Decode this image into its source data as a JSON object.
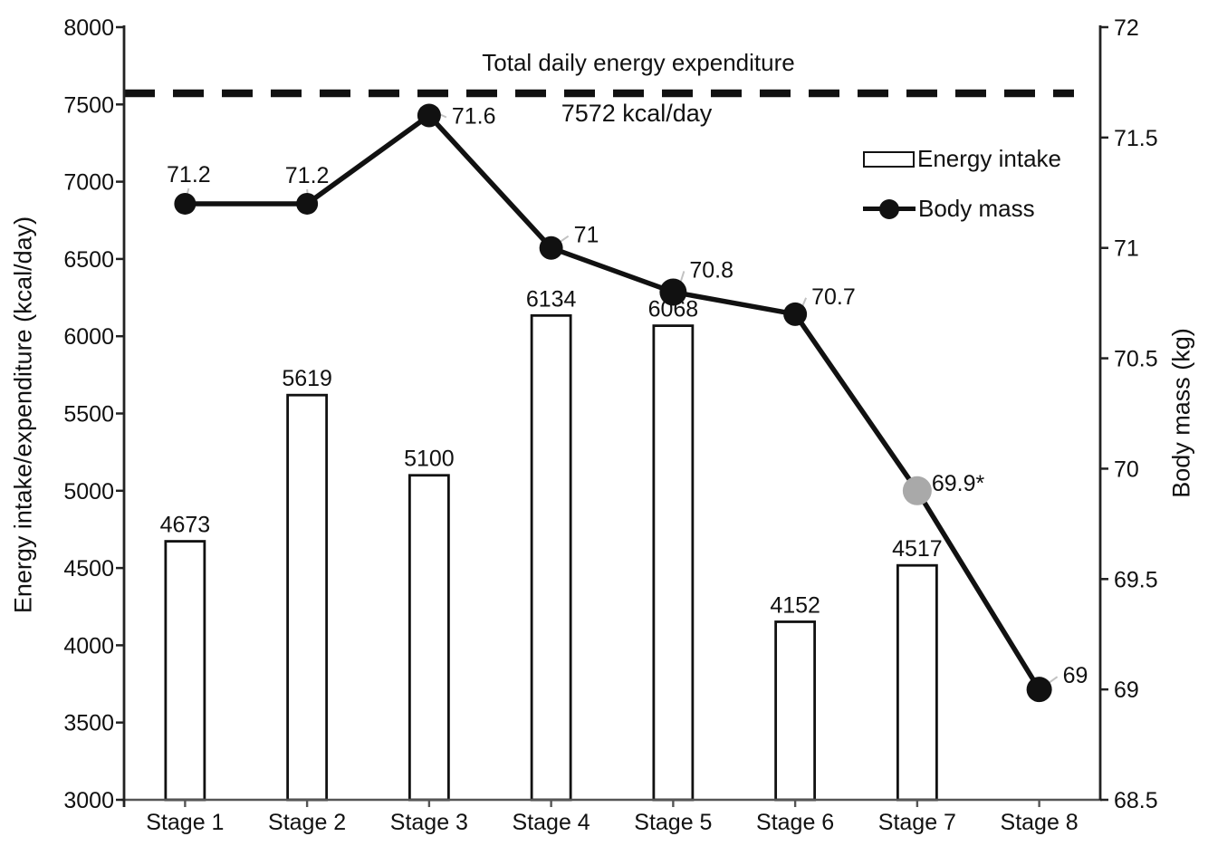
{
  "chart_data": {
    "type": "combo",
    "categories": [
      "Stage 1",
      "Stage 2",
      "Stage 3",
      "Stage 4",
      "Stage 5",
      "Stage 6",
      "Stage 7",
      "Stage 8"
    ],
    "left_axis": {
      "label": "Energy intake/expenditure (kcal/day)",
      "min": 3000,
      "max": 8000,
      "step": 500
    },
    "right_axis": {
      "label": "Body mass (kg)",
      "min": 68.5,
      "max": 72,
      "step": 0.5
    },
    "reference_line": {
      "value": 7572,
      "label": "Total daily energy expenditure",
      "value_label": "7572 kcal/day",
      "style": "dashed",
      "color": "#111111"
    },
    "series": [
      {
        "name": "Energy intake",
        "type": "bar",
        "axis": "left",
        "values": [
          4673,
          5619,
          5100,
          6134,
          6068,
          4152,
          4517,
          null
        ],
        "fill": "#ffffff",
        "stroke": "#111111"
      },
      {
        "name": "Body mass",
        "type": "line",
        "axis": "right",
        "color": "#111111",
        "values": [
          71.2,
          71.2,
          71.6,
          71.0,
          70.8,
          70.7,
          69.9,
          69.0
        ],
        "point_labels": [
          "71.2",
          "71.2",
          "71.6",
          "71",
          "70.8",
          "70.7",
          "69.9*",
          "69"
        ],
        "marker_colors": [
          "#111111",
          "#111111",
          "#111111",
          "#111111",
          "#111111",
          "#111111",
          "#a9a9a9",
          "#111111"
        ],
        "marker_sizes": [
          12,
          12,
          13,
          13,
          15,
          13,
          16,
          14
        ],
        "label_offsets": [
          {
            "dx": 4,
            "dy": -24,
            "anchor": "middle"
          },
          {
            "dx": 0,
            "dy": -23,
            "anchor": "middle"
          },
          {
            "dx": 25,
            "dy": 9,
            "anchor": "start"
          },
          {
            "dx": 25,
            "dy": -6,
            "anchor": "start"
          },
          {
            "dx": 18,
            "dy": -16,
            "anchor": "start"
          },
          {
            "dx": 18,
            "dy": -11,
            "anchor": "start"
          },
          {
            "dx": 16,
            "dy": 0,
            "anchor": "start"
          },
          {
            "dx": 26,
            "dy": -7,
            "anchor": "start"
          }
        ]
      }
    ],
    "legend": [
      {
        "label": "Energy intake",
        "swatch": "bar"
      },
      {
        "label": "Body mass",
        "swatch": "line"
      }
    ]
  }
}
